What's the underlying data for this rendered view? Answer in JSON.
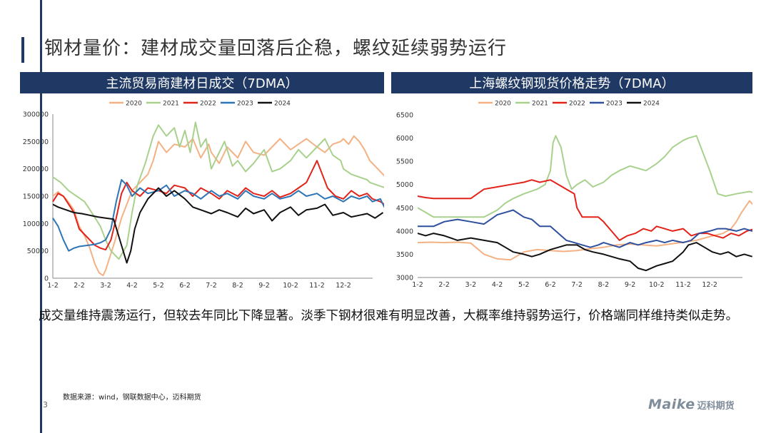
{
  "title": "钢材量价：建材成交量回落后企稳，螺纹延续弱势运行",
  "summary": "成交量维持震荡运行，但较去年同比下降显著。淡季下钢材很难有明显改善，大概率维持弱势运行，价格端同样维持类似走势。",
  "source": "数据来源：wind，钢联数据中心，迈科期货",
  "page_number": "3",
  "logo": {
    "brand": "Maike",
    "cn": "迈科期货"
  },
  "colors": {
    "navy": "#1f3864",
    "y2020": "#f4b183",
    "y2021": "#a9d18e",
    "y2022": "#e2231a",
    "y2023": "#2e75b6",
    "y2023b": "#2f4f9f",
    "y2024": "#111111"
  },
  "chart_data": [
    {
      "type": "line",
      "title": "主流贸易商建材日成交（7DMA）",
      "ylim": [
        0,
        300000
      ],
      "yticks": [
        "300000",
        "250000",
        "200000",
        "150000",
        "100000",
        "50000",
        "0"
      ],
      "ytick_values": [
        300000,
        250000,
        200000,
        150000,
        100000,
        50000,
        0
      ],
      "xticks": [
        "1-2",
        "2-2",
        "3-2",
        "4-2",
        "5-2",
        "6-2",
        "7-2",
        "8-2",
        "9-2",
        "10-2",
        "11-2",
        "12-2"
      ],
      "legend": [
        "2020",
        "2021",
        "2022",
        "2023",
        "2024"
      ],
      "series": [
        {
          "name": "2020",
          "color": "#f4b183",
          "x": [
            0,
            0.2,
            0.5,
            0.8,
            1,
            1.2,
            1.4,
            1.6,
            1.75,
            1.9,
            2,
            2.3,
            2.6,
            3,
            3.3,
            3.6,
            3.8,
            4,
            4.3,
            4.6,
            5,
            5.3,
            5.6,
            5.9,
            6,
            6.3,
            6.6,
            7,
            7.3,
            7.6,
            8,
            8.3,
            8.6,
            9,
            9.3,
            9.6,
            10,
            10.3,
            10.6,
            10.9,
            11,
            11.2,
            11.4,
            11.6,
            11.8,
            12,
            12.3,
            12.6,
            12.9
          ],
          "values": [
            150000,
            158000,
            145000,
            125000,
            95000,
            78000,
            55000,
            25000,
            10000,
            5000,
            15000,
            60000,
            110000,
            160000,
            175000,
            190000,
            215000,
            250000,
            230000,
            245000,
            240000,
            255000,
            220000,
            245000,
            230000,
            210000,
            240000,
            220000,
            250000,
            230000,
            225000,
            240000,
            255000,
            235000,
            245000,
            255000,
            240000,
            230000,
            245000,
            250000,
            255000,
            245000,
            260000,
            250000,
            235000,
            215000,
            200000,
            185000,
            175000
          ]
        },
        {
          "name": "2021",
          "color": "#a9d18e",
          "x": [
            0,
            0.3,
            0.6,
            0.9,
            1.2,
            1.5,
            1.8,
            2,
            2.2,
            2.5,
            2.8,
            3,
            3.2,
            3.5,
            3.8,
            4,
            4.3,
            4.6,
            4.8,
            5,
            5.2,
            5.4,
            5.6,
            5.8,
            6,
            6.2,
            6.5,
            6.8,
            7,
            7.3,
            7.6,
            8,
            8.3,
            8.6,
            9,
            9.3,
            9.6,
            10,
            10.3,
            10.6,
            10.9,
            11,
            11.3,
            11.6,
            11.9,
            12,
            12.3,
            12.6,
            12.9
          ],
          "values": [
            185000,
            175000,
            160000,
            150000,
            140000,
            118000,
            95000,
            70000,
            50000,
            35000,
            60000,
            120000,
            170000,
            210000,
            260000,
            280000,
            260000,
            275000,
            240000,
            270000,
            230000,
            285000,
            240000,
            255000,
            200000,
            220000,
            250000,
            205000,
            215000,
            195000,
            210000,
            235000,
            195000,
            200000,
            215000,
            235000,
            220000,
            240000,
            255000,
            225000,
            215000,
            200000,
            190000,
            185000,
            180000,
            175000,
            170000,
            165000,
            155000
          ]
        },
        {
          "name": "2022",
          "color": "#e2231a",
          "x": [
            0,
            0.2,
            0.4,
            0.6,
            0.8,
            1,
            1.3,
            1.6,
            1.8,
            2,
            2.2,
            2.4,
            2.6,
            2.8,
            3,
            3.3,
            3.6,
            4,
            4.3,
            4.6,
            5,
            5.3,
            5.6,
            6,
            6.3,
            6.6,
            7,
            7.3,
            7.6,
            8,
            8.3,
            8.6,
            9,
            9.3,
            9.6,
            9.8,
            10,
            10.2,
            10.4,
            10.7,
            11,
            11.3,
            11.6,
            11.9,
            12.1,
            12.4,
            12.7,
            12.9
          ],
          "values": [
            140000,
            155000,
            150000,
            135000,
            120000,
            90000,
            75000,
            60000,
            55000,
            52000,
            70000,
            110000,
            155000,
            175000,
            160000,
            150000,
            165000,
            160000,
            155000,
            170000,
            165000,
            150000,
            165000,
            155000,
            145000,
            160000,
            150000,
            165000,
            155000,
            150000,
            160000,
            148000,
            155000,
            165000,
            175000,
            195000,
            215000,
            190000,
            165000,
            150000,
            145000,
            160000,
            150000,
            155000,
            145000,
            140000,
            130000,
            110000
          ]
        },
        {
          "name": "2023",
          "color": "#2e75b6",
          "x": [
            0,
            0.2,
            0.4,
            0.6,
            0.8,
            1,
            1.3,
            1.6,
            1.8,
            2,
            2.2,
            2.4,
            2.6,
            2.8,
            3,
            3.3,
            3.6,
            4,
            4.3,
            4.6,
            5,
            5.3,
            5.6,
            6,
            6.3,
            6.6,
            7,
            7.3,
            7.6,
            8,
            8.3,
            8.6,
            9,
            9.3,
            9.6,
            10,
            10.3,
            10.6,
            11,
            11.3,
            11.6,
            11.9,
            12.1,
            12.4,
            12.7,
            12.9
          ],
          "values": [
            110000,
            95000,
            70000,
            50000,
            55000,
            58000,
            60000,
            62000,
            65000,
            70000,
            90000,
            140000,
            180000,
            170000,
            150000,
            165000,
            155000,
            160000,
            170000,
            150000,
            160000,
            155000,
            145000,
            160000,
            150000,
            155000,
            145000,
            160000,
            150000,
            145000,
            155000,
            145000,
            150000,
            160000,
            150000,
            155000,
            145000,
            150000,
            140000,
            150000,
            145000,
            150000,
            140000,
            145000,
            115000,
            130000
          ]
        },
        {
          "name": "2024",
          "color": "#111111",
          "x": [
            0,
            0.2,
            0.5,
            0.8,
            1.1,
            1.4,
            1.7,
            2,
            2.3,
            2.6,
            2.8,
            2.95,
            3.1,
            3.3,
            3.6,
            4,
            4.3,
            4.6,
            5,
            5.3,
            5.6,
            6,
            6.3,
            6.6,
            7,
            7.3,
            7.6,
            8,
            8.3,
            8.6,
            9,
            9.3,
            9.6,
            10,
            10.3,
            10.6,
            11,
            11.3,
            11.6,
            11.9,
            12.2,
            12.5
          ],
          "values": [
            135000,
            130000,
            125000,
            120000,
            118000,
            115000,
            112000,
            110000,
            108000,
            60000,
            28000,
            50000,
            90000,
            120000,
            145000,
            165000,
            150000,
            160000,
            145000,
            130000,
            125000,
            118000,
            125000,
            120000,
            112000,
            128000,
            118000,
            125000,
            105000,
            120000,
            130000,
            115000,
            125000,
            128000,
            135000,
            115000,
            120000,
            112000,
            115000,
            118000,
            110000,
            120000
          ]
        }
      ]
    },
    {
      "type": "line",
      "title": "上海螺纹钢现货价格走势（7DMA）",
      "ylim": [
        3000,
        6500
      ],
      "yticks": [
        "6500",
        "6000",
        "5500",
        "5000",
        "4500",
        "4000",
        "3500",
        "3000"
      ],
      "ytick_values": [
        6500,
        6000,
        5500,
        5000,
        4500,
        4000,
        3500,
        3000
      ],
      "xticks": [
        "1-2",
        "2-2",
        "3-2",
        "4-2",
        "5-2",
        "6-2",
        "7-2",
        "8-2",
        "9-2",
        "10-2",
        "11-2",
        "12-2"
      ],
      "legend": [
        "2020",
        "2021",
        "2022",
        "2023",
        "2024"
      ],
      "series": [
        {
          "name": "2020",
          "color": "#f4b183",
          "x": [
            0,
            0.5,
            1,
            1.5,
            2,
            2.5,
            3,
            3.5,
            4,
            4.5,
            5,
            5.5,
            6,
            6.5,
            7,
            7.5,
            8,
            8.5,
            9,
            9.5,
            10,
            10.5,
            11,
            11.5,
            11.8,
            12,
            12.2,
            12.5,
            12.8,
            13
          ],
          "values": [
            3750,
            3760,
            3750,
            3760,
            3740,
            3500,
            3400,
            3380,
            3550,
            3600,
            3580,
            3560,
            3580,
            3620,
            3650,
            3700,
            3720,
            3700,
            3680,
            3720,
            3760,
            3800,
            3880,
            3950,
            4050,
            4200,
            4400,
            4650,
            4450,
            4450
          ]
        },
        {
          "name": "2021",
          "color": "#a9d18e",
          "x": [
            0,
            0.3,
            0.6,
            1,
            1.5,
            2,
            2.5,
            3,
            3.3,
            3.6,
            4,
            4.5,
            4.8,
            5,
            5.1,
            5.2,
            5.4,
            5.6,
            5.8,
            6,
            6.3,
            6.6,
            7,
            7.3,
            7.6,
            8,
            8.3,
            8.6,
            9,
            9.3,
            9.6,
            10,
            10.2,
            10.5,
            10.8,
            11,
            11.3,
            11.6,
            12,
            12.5,
            12.8,
            13
          ],
          "values": [
            4500,
            4400,
            4300,
            4300,
            4300,
            4300,
            4300,
            4450,
            4600,
            4700,
            4800,
            4900,
            5000,
            5300,
            5900,
            6050,
            5800,
            5200,
            4900,
            5000,
            5100,
            4950,
            5050,
            5200,
            5300,
            5400,
            5350,
            5300,
            5450,
            5600,
            5800,
            5950,
            6000,
            6050,
            5600,
            5300,
            4800,
            4750,
            4800,
            4850,
            4800,
            4750
          ]
        },
        {
          "name": "2022",
          "color": "#e2231a",
          "x": [
            0,
            0.3,
            0.6,
            1,
            1.5,
            2,
            2.5,
            3,
            3.5,
            4,
            4.3,
            4.6,
            5,
            5.3,
            5.6,
            5.9,
            6,
            6.2,
            6.5,
            6.8,
            7,
            7.3,
            7.6,
            7.9,
            8.2,
            8.5,
            8.8,
            9,
            9.3,
            9.6,
            10,
            10.3,
            10.6,
            10.9,
            11.2,
            11.5,
            11.8,
            12.1,
            12.4,
            12.7,
            13
          ],
          "values": [
            4750,
            4720,
            4700,
            4700,
            4700,
            4700,
            4900,
            4950,
            5000,
            5050,
            5100,
            5050,
            5100,
            5000,
            4900,
            4800,
            4500,
            4300,
            4300,
            4300,
            4200,
            4000,
            3800,
            3900,
            3950,
            4050,
            4000,
            4100,
            4050,
            4000,
            4050,
            3900,
            3950,
            3950,
            3900,
            3850,
            3950,
            3900,
            4000,
            4050,
            4100
          ]
        },
        {
          "name": "2023",
          "color": "#2f4f9f",
          "x": [
            0,
            0.3,
            0.6,
            1,
            1.5,
            2,
            2.5,
            3,
            3.3,
            3.6,
            4,
            4.3,
            4.6,
            5,
            5.3,
            5.6,
            5.9,
            6.2,
            6.5,
            6.8,
            7,
            7.3,
            7.6,
            8,
            8.3,
            8.6,
            9,
            9.3,
            9.6,
            10,
            10.3,
            10.6,
            11,
            11.3,
            11.6,
            12,
            12.3,
            12.6,
            13
          ],
          "values": [
            4100,
            4100,
            4100,
            4200,
            4250,
            4200,
            4150,
            4350,
            4400,
            4450,
            4300,
            4250,
            4100,
            4100,
            3950,
            3800,
            3750,
            3700,
            3650,
            3700,
            3750,
            3700,
            3650,
            3750,
            3700,
            3750,
            3800,
            3750,
            3800,
            3750,
            3800,
            3950,
            4000,
            4050,
            4050,
            4000,
            4050,
            4000,
            4000
          ]
        },
        {
          "name": "2024",
          "color": "#111111",
          "x": [
            0,
            0.3,
            0.6,
            1,
            1.5,
            2,
            2.5,
            3,
            3.3,
            3.6,
            4,
            4.3,
            4.6,
            5,
            5.3,
            5.6,
            6,
            6.3,
            6.6,
            7,
            7.3,
            7.6,
            8,
            8.3,
            8.6,
            9,
            9.3,
            9.6,
            10,
            10.2,
            10.5,
            10.8,
            11.1,
            11.4,
            11.7,
            12,
            12.3,
            12.6
          ],
          "values": [
            3950,
            3900,
            3950,
            3900,
            3800,
            3850,
            3800,
            3750,
            3650,
            3550,
            3500,
            3450,
            3500,
            3600,
            3650,
            3700,
            3700,
            3600,
            3550,
            3500,
            3450,
            3400,
            3350,
            3200,
            3150,
            3250,
            3300,
            3350,
            3550,
            3700,
            3750,
            3650,
            3550,
            3500,
            3550,
            3450,
            3500,
            3450
          ]
        }
      ]
    }
  ]
}
